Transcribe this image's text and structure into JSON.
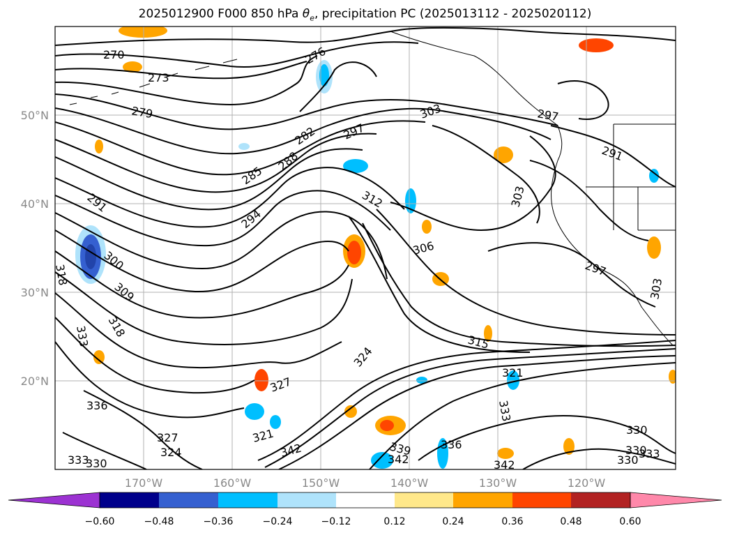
{
  "title": {
    "main": "2025012900 F000 850 hPa",
    "theta": "θ",
    "theta_sub": "e",
    "rest": ", precipitation PC (2025013112 - 2025020112)"
  },
  "map": {
    "lat_ticks": [
      "50°N",
      "40°N",
      "30°N",
      "20°N"
    ],
    "lon_ticks": [
      "170°W",
      "160°W",
      "150°W",
      "140°W",
      "130°W",
      "120°W"
    ],
    "contour_labels": [
      "270",
      "273",
      "276",
      "279",
      "282",
      "285",
      "288",
      "291",
      "294",
      "297",
      "297",
      "300",
      "303",
      "303",
      "306",
      "309",
      "312",
      "315",
      "318",
      "318",
      "321",
      "321",
      "324",
      "324",
      "327",
      "327",
      "330",
      "330",
      "333",
      "333",
      "336",
      "336",
      "339",
      "342",
      "342",
      "342",
      "291",
      "297",
      "303",
      "330",
      "333",
      "333",
      "330"
    ]
  },
  "colorbar": {
    "labels": [
      "−0.60",
      "−0.48",
      "−0.36",
      "−0.24",
      "−0.12",
      "0.12",
      "0.24",
      "0.36",
      "0.48",
      "0.60"
    ],
    "colors": [
      "#9c32d2",
      "#00008b",
      "#3560d0",
      "#00bfff",
      "#afe3fb",
      "#ffffff",
      "#ffe88a",
      "#ffa500",
      "#ff4500",
      "#b22222",
      "#ff88aa"
    ]
  },
  "colors": {
    "contour": "#000000",
    "grid": "#b0b0b0",
    "frame": "#000000",
    "coast": "#000000"
  }
}
